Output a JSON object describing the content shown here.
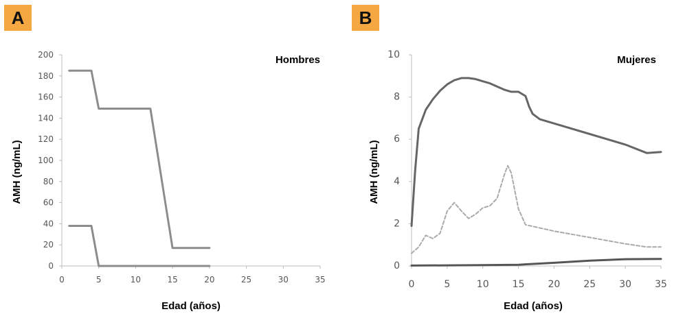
{
  "badges": {
    "a": "A",
    "b": "B"
  },
  "chart_data": [
    {
      "type": "line",
      "panel": "A",
      "title": "Hombres",
      "xlabel": "Edad (años)",
      "ylabel": "AMH (ng/mL)",
      "xlim": [
        0,
        35
      ],
      "ylim": [
        0,
        200
      ],
      "xticks": [
        0,
        5,
        10,
        15,
        20,
        25,
        30,
        35
      ],
      "yticks": [
        0,
        20,
        40,
        60,
        80,
        100,
        120,
        140,
        160,
        180,
        200
      ],
      "grid": false,
      "series": [
        {
          "x": [
            1,
            4,
            5,
            12,
            15,
            20
          ],
          "y": [
            185,
            185,
            149,
            149,
            17,
            17
          ],
          "style": "solid",
          "color": "#8c8c8c"
        },
        {
          "x": [
            1,
            4,
            5,
            20
          ],
          "y": [
            38,
            38,
            0,
            0
          ],
          "style": "solid",
          "color": "#8c8c8c"
        }
      ]
    },
    {
      "type": "line",
      "panel": "B",
      "title": "Mujeres",
      "xlabel": "Edad (años)",
      "ylabel": "AMH (ng/mL)",
      "xlim": [
        0,
        35
      ],
      "ylim": [
        0,
        10
      ],
      "xticks": [
        0,
        5,
        10,
        15,
        20,
        25,
        30,
        35
      ],
      "yticks": [
        0,
        2,
        4,
        6,
        8,
        10
      ],
      "grid": false,
      "series": [
        {
          "x": [
            0,
            0.5,
            1,
            2,
            3,
            4,
            5,
            6,
            7,
            8,
            9,
            10,
            11,
            12,
            13,
            14,
            15,
            16,
            16.5,
            17,
            18,
            20,
            25,
            30,
            33,
            35
          ],
          "y": [
            1.9,
            4.5,
            6.5,
            7.4,
            7.9,
            8.3,
            8.6,
            8.8,
            8.9,
            8.9,
            8.85,
            8.75,
            8.65,
            8.5,
            8.35,
            8.25,
            8.25,
            8.05,
            7.55,
            7.2,
            6.95,
            6.75,
            6.25,
            5.75,
            5.35,
            5.4
          ],
          "style": "solid",
          "color": "#666666"
        },
        {
          "x": [
            0,
            1,
            2,
            3,
            4,
            5,
            6,
            7,
            8,
            9,
            10,
            11,
            12,
            13,
            13.5,
            14,
            15,
            16,
            20,
            25,
            30,
            33,
            35
          ],
          "y": [
            0.6,
            0.9,
            1.45,
            1.3,
            1.55,
            2.6,
            3.0,
            2.6,
            2.25,
            2.45,
            2.75,
            2.85,
            3.2,
            4.3,
            4.75,
            4.4,
            2.7,
            1.95,
            1.65,
            1.35,
            1.05,
            0.9,
            0.9
          ],
          "style": "dashed",
          "color": "#aaaaaa"
        },
        {
          "x": [
            0,
            5,
            10,
            15,
            20,
            25,
            30,
            35
          ],
          "y": [
            0.02,
            0.03,
            0.04,
            0.06,
            0.15,
            0.25,
            0.32,
            0.33
          ],
          "style": "solid",
          "color": "#555555"
        }
      ]
    }
  ]
}
